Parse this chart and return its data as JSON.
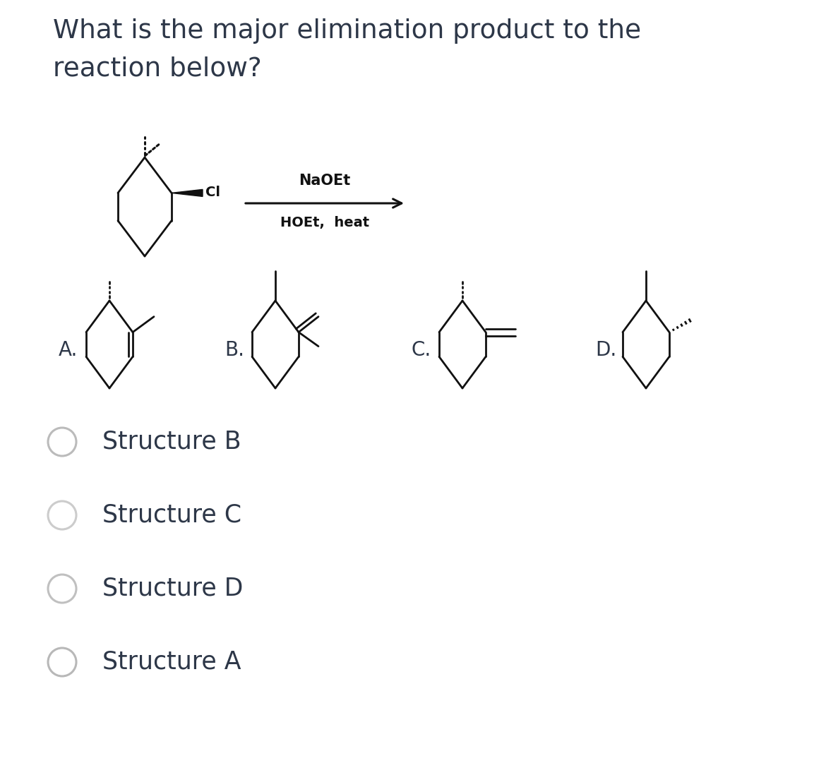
{
  "title_line1": "What is the major elimination product to the",
  "title_line2": "reaction below?",
  "reagent_line1": "NaOEt",
  "reagent_line2": "HOEt,  heat",
  "choices": [
    "Structure B",
    "Structure C",
    "Structure D",
    "Structure A"
  ],
  "bg_color": "#ffffff",
  "text_color": "#2d3748",
  "line_color": "#111111",
  "circle_color_1": "#bbbbbb",
  "circle_color_2": "#cccccc",
  "circle_color_3": "#c0c0c0",
  "circle_color_4": "#b8b8b8",
  "title_fontsize": 27,
  "label_fontsize": 20,
  "choice_fontsize": 25,
  "reagent_fontsize": 15
}
